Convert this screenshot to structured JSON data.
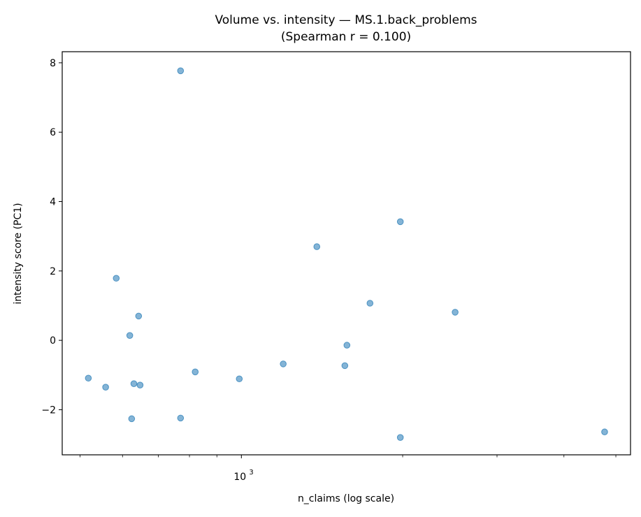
{
  "chart_data": {
    "type": "scatter",
    "title": "Volume vs. intensity — MS.1.back_problems",
    "subtitle": "(Spearman r = 0.100)",
    "xlabel": "n_claims (log scale)",
    "ylabel": "intensity score (PC1)",
    "xscale": "log",
    "xlim": [
      463,
      5325
    ],
    "ylim": [
      -3.3,
      8.32
    ],
    "xticks_major": [
      {
        "value": 1000,
        "label": "10",
        "exp": "3"
      }
    ],
    "xticks_minor": [
      500,
      600,
      700,
      800,
      900,
      2000,
      3000,
      4000,
      5000
    ],
    "yticks": [
      -2,
      0,
      2,
      4,
      6,
      8
    ],
    "ytick_labels": [
      "−2",
      "0",
      "2",
      "4",
      "6",
      "8"
    ],
    "grid": false,
    "marker_color": "#1f77b4",
    "marker_alpha": 0.55,
    "points": [
      {
        "x": 770,
        "y": 7.77
      },
      {
        "x": 1980,
        "y": 3.42
      },
      {
        "x": 1383,
        "y": 2.7
      },
      {
        "x": 584,
        "y": 1.79
      },
      {
        "x": 1738,
        "y": 1.07
      },
      {
        "x": 643,
        "y": 0.7
      },
      {
        "x": 2506,
        "y": 0.81
      },
      {
        "x": 619,
        "y": 0.14
      },
      {
        "x": 1574,
        "y": -0.14
      },
      {
        "x": 518,
        "y": -1.09
      },
      {
        "x": 558,
        "y": -1.35
      },
      {
        "x": 630,
        "y": -1.25
      },
      {
        "x": 647,
        "y": -1.29
      },
      {
        "x": 820,
        "y": -0.91
      },
      {
        "x": 991,
        "y": -1.11
      },
      {
        "x": 1197,
        "y": -0.68
      },
      {
        "x": 1560,
        "y": -0.73
      },
      {
        "x": 624,
        "y": -2.26
      },
      {
        "x": 770,
        "y": -2.24
      },
      {
        "x": 1980,
        "y": -2.8
      },
      {
        "x": 4764,
        "y": -2.64
      }
    ]
  }
}
